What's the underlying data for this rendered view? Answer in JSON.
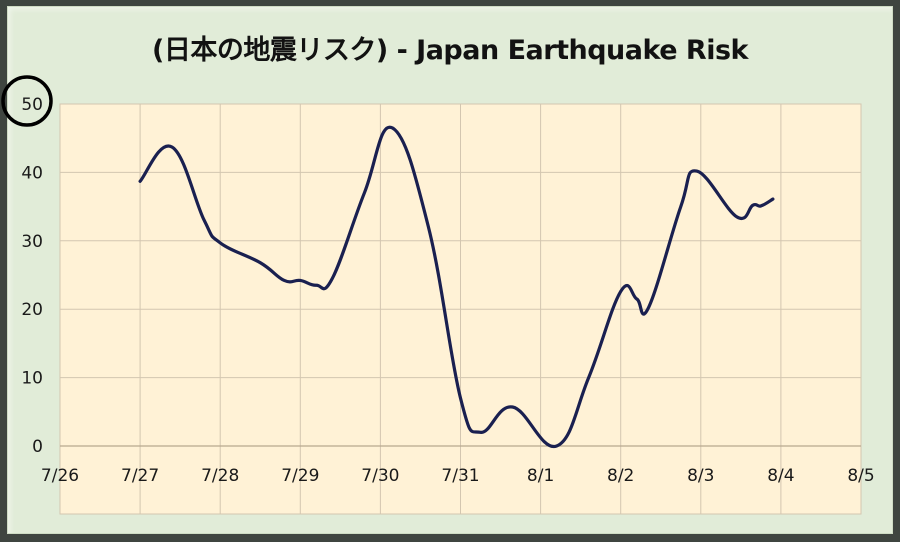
{
  "chart_data": {
    "type": "line",
    "title": "(日本の地震リスク) - Japan Earthquake Risk",
    "xlabel": "",
    "ylabel": "",
    "x_tick_labels": [
      "7/26",
      "7/27",
      "7/28",
      "7/29",
      "7/30",
      "7/31",
      "8/1",
      "8/2",
      "8/3",
      "8/4",
      "8/5"
    ],
    "y_tick_labels": [
      "0",
      "10",
      "20",
      "30",
      "40",
      "50"
    ],
    "ylim": [
      0,
      50
    ],
    "xlim_days": [
      0,
      10
    ],
    "grid": true,
    "legend": null,
    "annotation": {
      "type": "circle",
      "target": "y-tick 50"
    },
    "series": [
      {
        "name": "Japan Earthquake Risk",
        "color": "#1a2050",
        "x_days_since_7_26": [
          1.0,
          1.4,
          1.8,
          2.0,
          2.5,
          2.8,
          3.0,
          3.2,
          3.4,
          3.8,
          4.15,
          4.6,
          5.0,
          5.25,
          5.65,
          6.2,
          6.6,
          7.0,
          7.2,
          7.35,
          7.75,
          7.95,
          8.45,
          8.65,
          8.75,
          8.9
        ],
        "values": [
          38.7,
          43.7,
          33.0,
          29.7,
          26.8,
          24.2,
          24.2,
          23.5,
          24.5,
          37.0,
          46.5,
          32.0,
          7.0,
          2.0,
          5.7,
          0.0,
          10.0,
          22.6,
          21.5,
          20.3,
          35.0,
          40.2,
          33.5,
          35.2,
          35.1,
          36.1
        ]
      }
    ]
  },
  "colors": {
    "frame": "#3f4540",
    "panel": "#e1ecd8",
    "plot_bg": "#fff2d6",
    "grid": "#d3c6b0",
    "line": "#1a2050"
  }
}
